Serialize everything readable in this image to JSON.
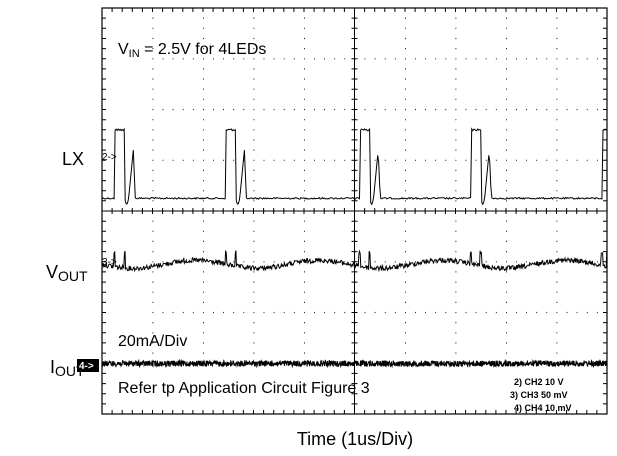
{
  "chart_data": {
    "type": "line",
    "title": "",
    "xlabel": "Time (1us/Div)",
    "x_divisions": 10,
    "y_divisions": 8,
    "grid": true,
    "annotations": {
      "condition_main": "V",
      "condition_sub": "IN",
      "condition_rest": " = 2.5V for 4LEDs",
      "iout_scale": "20mA/Div",
      "note": "Refer tp Application Circuit Figure 3"
    },
    "channel_settings": [
      "2) CH2 10 V",
      "3) CH3 50 mV",
      "4) CH4 10 mV"
    ],
    "series": [
      {
        "name": "LX",
        "label_main": "LX",
        "label_sub": "",
        "marker": "2->",
        "level_div": 4.25,
        "pulses": [
          {
            "rise": 0.25,
            "fall": 0.45,
            "ring_peak": 0.62,
            "ring_end": 0.66
          },
          {
            "rise": 2.45,
            "fall": 2.65,
            "ring_peak": 2.82,
            "ring_end": 2.86
          },
          {
            "rise": 5.1,
            "fall": 5.3,
            "ring_peak": 5.47,
            "ring_end": 5.51
          },
          {
            "rise": 7.3,
            "fall": 7.5,
            "ring_peak": 7.67,
            "ring_end": 7.71
          },
          {
            "rise": 9.9,
            "fall": 10.0
          }
        ],
        "high_div": 5.6
      },
      {
        "name": "VOUT",
        "label_main": "V",
        "label_sub": "OUT",
        "marker": "3->",
        "level_div": 2.95
      },
      {
        "name": "IOUT",
        "label_main": "I",
        "label_sub": "OUT",
        "marker": "4->",
        "level_div": 0.6
      }
    ]
  }
}
